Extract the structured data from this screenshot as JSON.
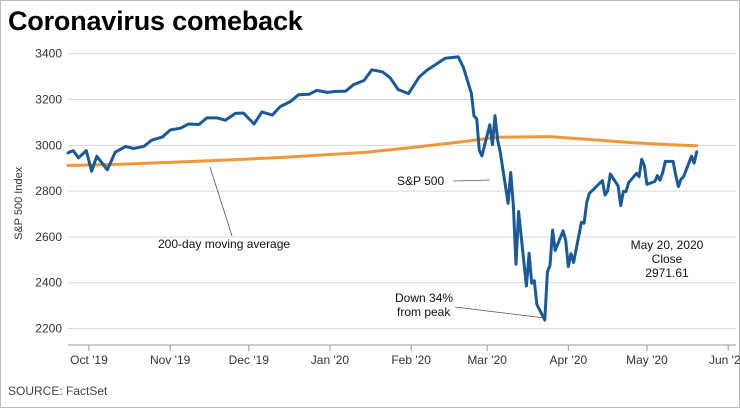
{
  "title": "Coronavirus comeback",
  "source": "SOURCE: FactSet",
  "chart_data": {
    "type": "line",
    "title": "Coronavirus comeback",
    "xlabel": "",
    "ylabel": "S&P 500 Index",
    "ylim": [
      2150,
      3460
    ],
    "yticks": [
      2200,
      2400,
      2600,
      2800,
      3000,
      3200,
      3400
    ],
    "xticks": [
      "Oct '19",
      "Nov '19",
      "Dec '19",
      "Jan '20",
      "Feb '20",
      "Mar '20",
      "Apr '20",
      "May '20",
      "Jun '20"
    ],
    "xlim": [
      "2019-09-23",
      "2020-06-04"
    ],
    "grid": "horizontal",
    "colors": {
      "sp500": "#1a5a96",
      "ma": "#f0963c"
    },
    "series": [
      {
        "name": "S&P 500",
        "points": [
          [
            "2019-09-23",
            2967
          ],
          [
            "2019-09-25",
            2977
          ],
          [
            "2019-09-27",
            2945
          ],
          [
            "2019-09-30",
            2977
          ],
          [
            "2019-10-02",
            2887
          ],
          [
            "2019-10-04",
            2952
          ],
          [
            "2019-10-08",
            2893
          ],
          [
            "2019-10-11",
            2970
          ],
          [
            "2019-10-15",
            2995
          ],
          [
            "2019-10-18",
            2986
          ],
          [
            "2019-10-22",
            2996
          ],
          [
            "2019-10-25",
            3023
          ],
          [
            "2019-10-29",
            3036
          ],
          [
            "2019-11-01",
            3067
          ],
          [
            "2019-11-05",
            3075
          ],
          [
            "2019-11-08",
            3093
          ],
          [
            "2019-11-12",
            3091
          ],
          [
            "2019-11-15",
            3120
          ],
          [
            "2019-11-19",
            3120
          ],
          [
            "2019-11-22",
            3110
          ],
          [
            "2019-11-26",
            3140
          ],
          [
            "2019-11-29",
            3141
          ],
          [
            "2019-12-03",
            3093
          ],
          [
            "2019-12-06",
            3146
          ],
          [
            "2019-12-10",
            3132
          ],
          [
            "2019-12-13",
            3169
          ],
          [
            "2019-12-17",
            3192
          ],
          [
            "2019-12-20",
            3221
          ],
          [
            "2019-12-24",
            3223
          ],
          [
            "2019-12-27",
            3240
          ],
          [
            "2019-12-31",
            3231
          ],
          [
            "2020-01-03",
            3235
          ],
          [
            "2020-01-07",
            3237
          ],
          [
            "2020-01-10",
            3265
          ],
          [
            "2020-01-14",
            3283
          ],
          [
            "2020-01-17",
            3330
          ],
          [
            "2020-01-21",
            3321
          ],
          [
            "2020-01-24",
            3295
          ],
          [
            "2020-01-27",
            3244
          ],
          [
            "2020-01-31",
            3226
          ],
          [
            "2020-02-04",
            3297
          ],
          [
            "2020-02-07",
            3328
          ],
          [
            "2020-02-11",
            3358
          ],
          [
            "2020-02-14",
            3380
          ],
          [
            "2020-02-19",
            3386
          ],
          [
            "2020-02-21",
            3338
          ],
          [
            "2020-02-24",
            3226
          ],
          [
            "2020-02-25",
            3128
          ],
          [
            "2020-02-26",
            3116
          ],
          [
            "2020-02-27",
            2979
          ],
          [
            "2020-02-28",
            2954
          ],
          [
            "2020-03-02",
            3090
          ],
          [
            "2020-03-03",
            3003
          ],
          [
            "2020-03-04",
            3130
          ],
          [
            "2020-03-05",
            3024
          ],
          [
            "2020-03-06",
            2972
          ],
          [
            "2020-03-09",
            2747
          ],
          [
            "2020-03-10",
            2882
          ],
          [
            "2020-03-11",
            2741
          ],
          [
            "2020-03-12",
            2481
          ],
          [
            "2020-03-13",
            2711
          ],
          [
            "2020-03-16",
            2386
          ],
          [
            "2020-03-17",
            2529
          ],
          [
            "2020-03-18",
            2398
          ],
          [
            "2020-03-19",
            2409
          ],
          [
            "2020-03-20",
            2305
          ],
          [
            "2020-03-23",
            2237
          ],
          [
            "2020-03-24",
            2447
          ],
          [
            "2020-03-25",
            2476
          ],
          [
            "2020-03-26",
            2630
          ],
          [
            "2020-03-27",
            2541
          ],
          [
            "2020-03-30",
            2627
          ],
          [
            "2020-03-31",
            2585
          ],
          [
            "2020-04-01",
            2471
          ],
          [
            "2020-04-02",
            2527
          ],
          [
            "2020-04-03",
            2489
          ],
          [
            "2020-04-06",
            2664
          ],
          [
            "2020-04-07",
            2660
          ],
          [
            "2020-04-08",
            2750
          ],
          [
            "2020-04-09",
            2790
          ],
          [
            "2020-04-14",
            2846
          ],
          [
            "2020-04-15",
            2783
          ],
          [
            "2020-04-16",
            2800
          ],
          [
            "2020-04-17",
            2875
          ],
          [
            "2020-04-20",
            2823
          ],
          [
            "2020-04-21",
            2737
          ],
          [
            "2020-04-22",
            2799
          ],
          [
            "2020-04-23",
            2798
          ],
          [
            "2020-04-24",
            2837
          ],
          [
            "2020-04-27",
            2878
          ],
          [
            "2020-04-28",
            2863
          ],
          [
            "2020-04-29",
            2939
          ],
          [
            "2020-04-30",
            2912
          ],
          [
            "2020-05-01",
            2830
          ],
          [
            "2020-05-04",
            2842
          ],
          [
            "2020-05-05",
            2868
          ],
          [
            "2020-05-06",
            2848
          ],
          [
            "2020-05-07",
            2881
          ],
          [
            "2020-05-08",
            2930
          ],
          [
            "2020-05-11",
            2930
          ],
          [
            "2020-05-12",
            2870
          ],
          [
            "2020-05-13",
            2820
          ],
          [
            "2020-05-14",
            2852
          ],
          [
            "2020-05-15",
            2863
          ],
          [
            "2020-05-18",
            2953
          ],
          [
            "2020-05-19",
            2922
          ],
          [
            "2020-05-20",
            2972
          ]
        ]
      },
      {
        "name": "200-day moving average",
        "points": [
          [
            "2019-09-23",
            2912
          ],
          [
            "2019-10-15",
            2918
          ],
          [
            "2019-11-15",
            2932
          ],
          [
            "2019-12-15",
            2948
          ],
          [
            "2020-01-15",
            2970
          ],
          [
            "2020-02-01",
            2990
          ],
          [
            "2020-02-20",
            3015
          ],
          [
            "2020-03-05",
            3035
          ],
          [
            "2020-03-25",
            3038
          ],
          [
            "2020-04-10",
            3025
          ],
          [
            "2020-04-25",
            3012
          ],
          [
            "2020-05-10",
            3003
          ],
          [
            "2020-05-20",
            2998
          ]
        ]
      }
    ],
    "annotations": {
      "sp500_label": "S&P 500",
      "ma_label": "200-day moving average",
      "drop_line1": "Down 34%",
      "drop_line2": "from peak",
      "close_date": "May 20, 2020",
      "close_word": "Close",
      "close_value": "2971.61"
    }
  }
}
